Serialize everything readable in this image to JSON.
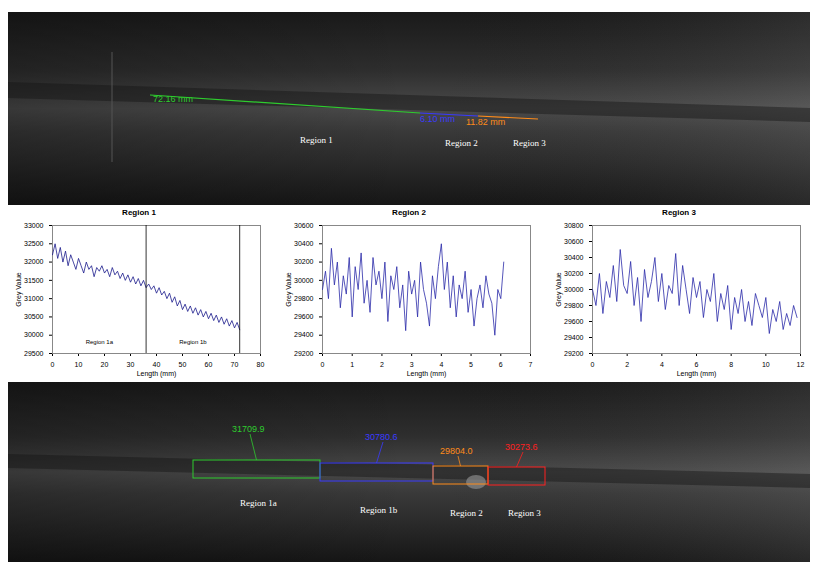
{
  "top_image": {
    "measurements": [
      {
        "text": "72.16 mm",
        "color": "#2ecc2e"
      },
      {
        "text": "6.10 mm",
        "color": "#3a3aff"
      },
      {
        "text": "11.82 mm",
        "color": "#ff8c1a"
      }
    ],
    "labels": [
      "Region 1",
      "Region 2",
      "Region 3"
    ]
  },
  "chart_data": [
    {
      "type": "line",
      "title": "Region 1",
      "x_label": "Length (mm)",
      "y_label": "Grey Value",
      "color": "#1a1a8c",
      "x": [
        0,
        1,
        2,
        3,
        4,
        5,
        6,
        7,
        8,
        9,
        10,
        11,
        12,
        13,
        14,
        15,
        16,
        17,
        18,
        19,
        20,
        21,
        22,
        23,
        24,
        25,
        26,
        27,
        28,
        29,
        30,
        31,
        32,
        33,
        34,
        35,
        36,
        37,
        38,
        39,
        40,
        41,
        42,
        43,
        44,
        45,
        46,
        47,
        48,
        49,
        50,
        51,
        52,
        53,
        54,
        55,
        56,
        57,
        58,
        59,
        60,
        61,
        62,
        63,
        64,
        65,
        66,
        67,
        68,
        69,
        70,
        71,
        72
      ],
      "values": [
        32200,
        32500,
        32100,
        32400,
        32000,
        32300,
        31900,
        32200,
        32000,
        31800,
        32100,
        31900,
        31700,
        32000,
        31800,
        31900,
        31600,
        31850,
        31750,
        31900,
        31700,
        31800,
        31600,
        31850,
        31650,
        31750,
        31550,
        31700,
        31500,
        31650,
        31450,
        31600,
        31400,
        31550,
        31350,
        31500,
        31300,
        31400,
        31250,
        31350,
        31150,
        31300,
        31100,
        31200,
        31000,
        31150,
        30900,
        31050,
        30800,
        30950,
        30700,
        30850,
        30650,
        30800,
        30600,
        30750,
        30550,
        30700,
        30500,
        30650,
        30450,
        30600,
        30400,
        30550,
        30350,
        30500,
        30300,
        30450,
        30250,
        30400,
        30200,
        30350,
        30150
      ],
      "xlim": [
        0,
        80
      ],
      "xticks": [
        0,
        10,
        20,
        30,
        40,
        50,
        60,
        70,
        80
      ],
      "ylim": [
        29500,
        33000
      ],
      "yticks": [
        29500,
        30000,
        30500,
        31000,
        31500,
        32000,
        32500,
        33000
      ],
      "grid": false,
      "sub_regions": [
        {
          "label": "Region 1a",
          "start": 0,
          "end": 36
        },
        {
          "label": "Region 1b",
          "start": 36,
          "end": 72
        }
      ]
    },
    {
      "type": "line",
      "title": "Region 2",
      "x_label": "Length (mm)",
      "y_label": "Grey Value",
      "color": "#2a2aa8",
      "x": [
        0,
        0.1,
        0.2,
        0.3,
        0.4,
        0.5,
        0.6,
        0.7,
        0.8,
        0.9,
        1,
        1.1,
        1.2,
        1.3,
        1.4,
        1.5,
        1.6,
        1.7,
        1.8,
        1.9,
        2,
        2.1,
        2.2,
        2.3,
        2.4,
        2.5,
        2.6,
        2.7,
        2.8,
        2.9,
        3,
        3.1,
        3.2,
        3.3,
        3.4,
        3.5,
        3.6,
        3.7,
        3.8,
        3.9,
        4,
        4.1,
        4.2,
        4.3,
        4.4,
        4.5,
        4.6,
        4.7,
        4.8,
        4.9,
        5,
        5.1,
        5.2,
        5.3,
        5.4,
        5.5,
        5.6,
        5.7,
        5.8,
        5.9,
        6,
        6.1
      ],
      "values": [
        29900,
        30100,
        29800,
        30350,
        29950,
        30200,
        29700,
        30050,
        29850,
        30250,
        29600,
        30150,
        29900,
        30300,
        29750,
        30000,
        29650,
        30250,
        29950,
        30100,
        29800,
        30200,
        29550,
        30050,
        29900,
        30150,
        29700,
        29950,
        29450,
        30100,
        29850,
        30000,
        29600,
        30200,
        29900,
        29750,
        29500,
        30050,
        29800,
        30150,
        30400,
        29900,
        30200,
        29700,
        30050,
        29600,
        29950,
        29800,
        30100,
        29650,
        29900,
        29500,
        29800,
        29950,
        29700,
        30050,
        29850,
        29750,
        29400,
        29900,
        29800,
        30200
      ],
      "xlim": [
        0,
        7
      ],
      "xticks": [
        0,
        1,
        2,
        3,
        4,
        5,
        6,
        7
      ],
      "ylim": [
        29200,
        30600
      ],
      "yticks": [
        29200,
        29400,
        29600,
        29800,
        30000,
        30200,
        30400,
        30600
      ],
      "grid": false
    },
    {
      "type": "line",
      "title": "Region 3",
      "x_label": "Length (mm)",
      "y_label": "Grey Value",
      "color": "#2a2aa8",
      "x": [
        0,
        0.2,
        0.4,
        0.6,
        0.8,
        1,
        1.2,
        1.4,
        1.6,
        1.8,
        2,
        2.2,
        2.4,
        2.6,
        2.8,
        3,
        3.2,
        3.4,
        3.6,
        3.8,
        4,
        4.2,
        4.4,
        4.6,
        4.8,
        5,
        5.2,
        5.4,
        5.6,
        5.8,
        6,
        6.2,
        6.4,
        6.6,
        6.8,
        7,
        7.2,
        7.4,
        7.6,
        7.8,
        8,
        8.2,
        8.4,
        8.6,
        8.8,
        9,
        9.2,
        9.4,
        9.6,
        9.8,
        10,
        10.2,
        10.4,
        10.6,
        10.8,
        11,
        11.2,
        11.4,
        11.6,
        11.8
      ],
      "values": [
        30000,
        29800,
        30200,
        29700,
        30100,
        29900,
        30300,
        29850,
        30500,
        30050,
        29950,
        30350,
        29800,
        30150,
        29600,
        30250,
        29900,
        30100,
        30400,
        29850,
        30200,
        29750,
        30050,
        29950,
        30450,
        29800,
        30300,
        30000,
        29700,
        30150,
        29900,
        30100,
        29650,
        30000,
        29850,
        30200,
        29600,
        29950,
        29750,
        30050,
        29500,
        29900,
        29700,
        30000,
        29600,
        29850,
        29550,
        29950,
        29800,
        29650,
        29900,
        29450,
        29750,
        29600,
        29850,
        29500,
        29700,
        29550,
        29800,
        29650
      ],
      "xlim": [
        0,
        12
      ],
      "xticks": [
        0,
        2,
        4,
        6,
        8,
        10,
        12
      ],
      "ylim": [
        29200,
        30800
      ],
      "yticks": [
        29200,
        29400,
        29600,
        29800,
        30000,
        30200,
        30400,
        30600,
        30800
      ],
      "grid": false
    }
  ],
  "bottom_image": {
    "regions": [
      {
        "label": "Region 1a",
        "value_text": "31709.9",
        "color": "#2ecc2e"
      },
      {
        "label": "Region 1b",
        "value_text": "30780.6",
        "color": "#3a3aff"
      },
      {
        "label": "Region 2",
        "value_text": "29804.0",
        "color": "#ff8c1a"
      },
      {
        "label": "Region 3",
        "value_text": "30273.6",
        "color": "#ff2020"
      }
    ]
  }
}
